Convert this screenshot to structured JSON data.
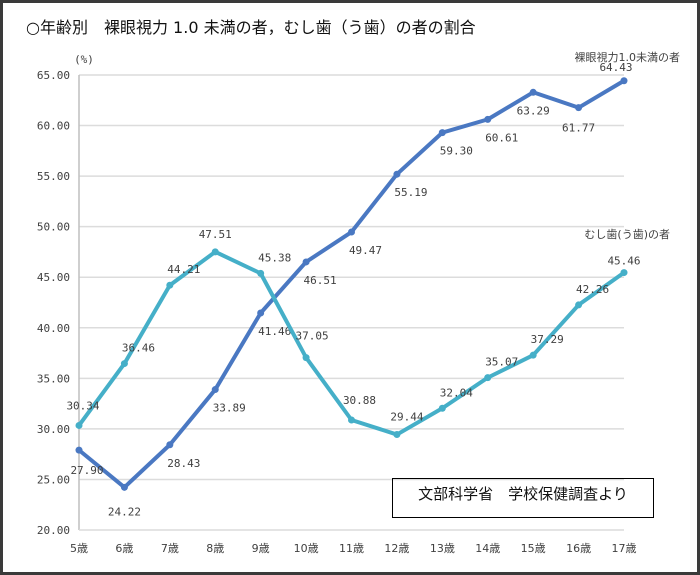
{
  "title": "○年齢別　裸眼視力 1.0 未満の者，むし歯（う歯）の者の割合",
  "source_note": "文部科学省　学校保健調査より",
  "chart_data": {
    "type": "line",
    "title": "○年齢別　裸眼視力 1.0 未満の者，むし歯（う歯）の者の割合",
    "ylabel": "(%)",
    "xlabel": "",
    "categories": [
      "5歳",
      "6歳",
      "7歳",
      "8歳",
      "9歳",
      "10歳",
      "11歳",
      "12歳",
      "13歳",
      "14歳",
      "15歳",
      "16歳",
      "17歳"
    ],
    "ylim": [
      20,
      65
    ],
    "yticks": [
      "20.00",
      "25.00",
      "30.00",
      "35.00",
      "40.00",
      "45.00",
      "50.00",
      "55.00",
      "60.00",
      "65.00"
    ],
    "grid": true,
    "series": [
      {
        "name": "裸眼視力1.0未満の者",
        "color": "#4a78c2",
        "values": [
          27.9,
          24.22,
          28.43,
          33.89,
          41.46,
          46.51,
          49.47,
          55.19,
          59.3,
          60.61,
          63.29,
          61.77,
          64.43
        ]
      },
      {
        "name": "むし歯(う歯)の者",
        "color": "#45afc8",
        "values": [
          30.34,
          36.46,
          44.21,
          47.51,
          45.38,
          37.05,
          30.88,
          29.44,
          32.04,
          35.07,
          37.29,
          42.26,
          45.46
        ]
      }
    ]
  }
}
